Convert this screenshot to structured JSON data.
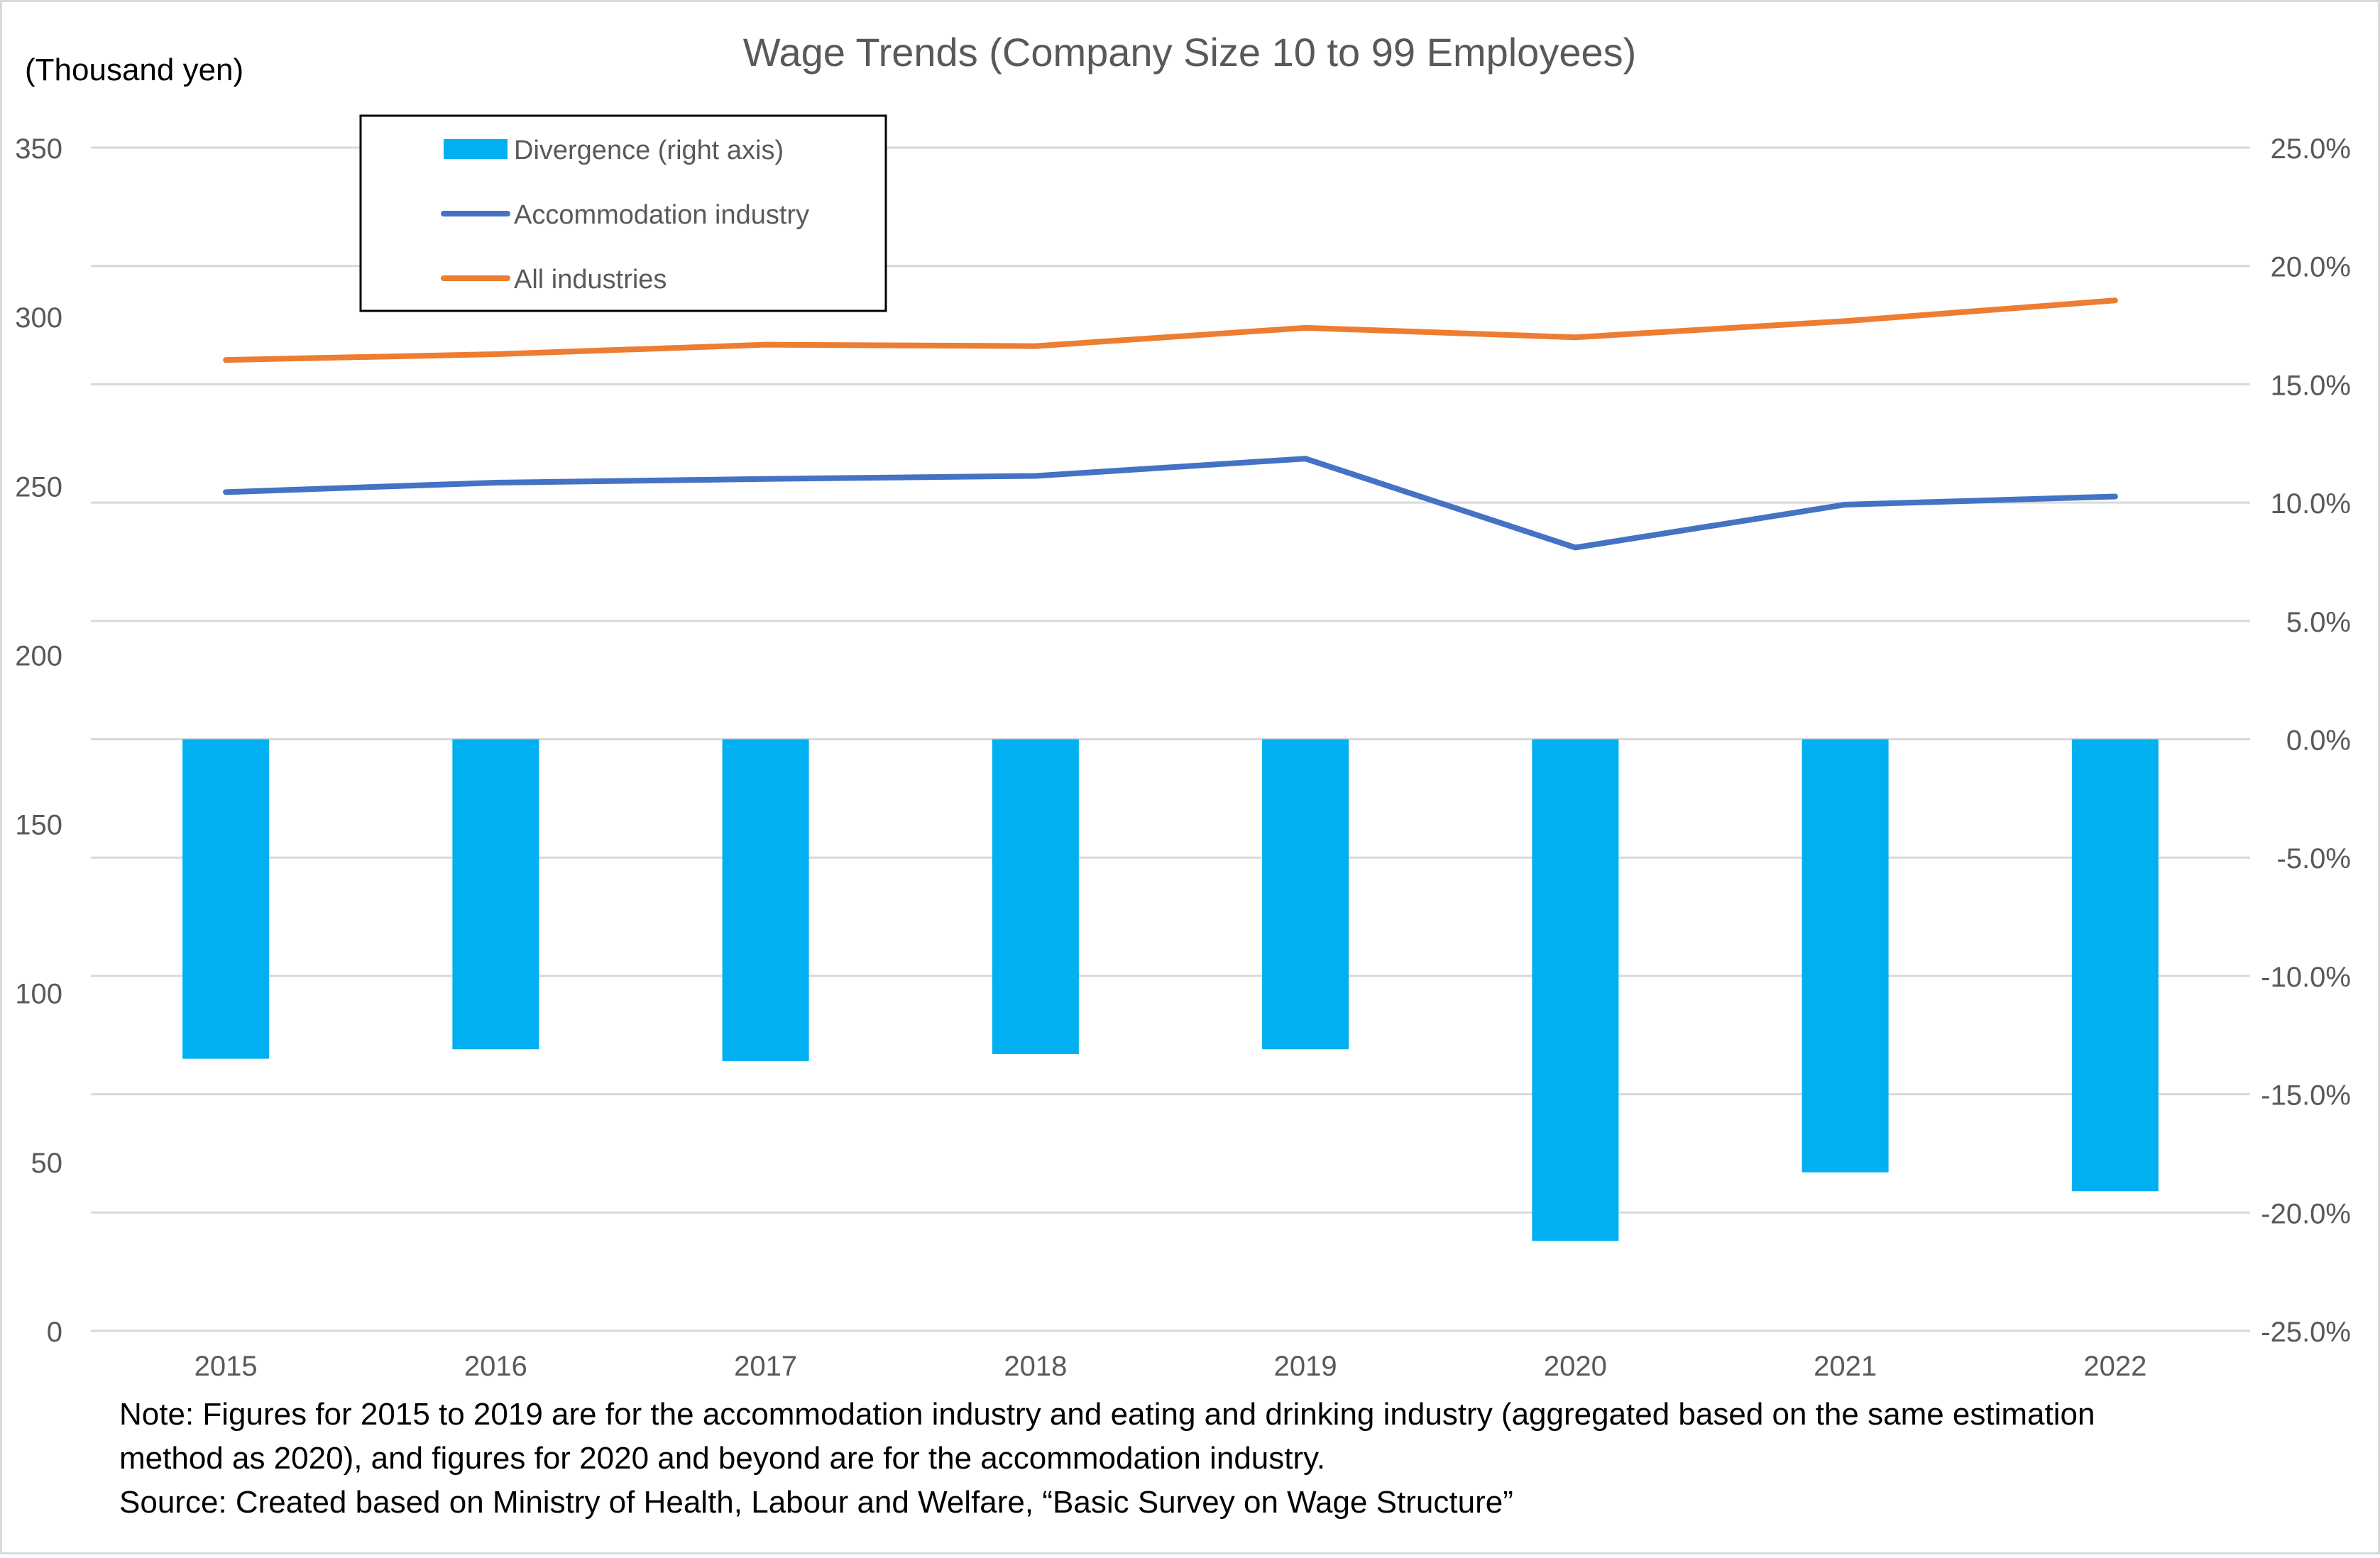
{
  "chart_data": {
    "type": "bar",
    "title": "Wage Trends (Company Size 10 to 99 Employees)",
    "ylabel": "(Thousand yen)",
    "categories": [
      "2015",
      "2016",
      "2017",
      "2018",
      "2019",
      "2020",
      "2021",
      "2022"
    ],
    "left_axis": {
      "ylim": [
        0,
        350
      ],
      "ticks": [
        "0",
        "50",
        "100",
        "150",
        "200",
        "250",
        "300",
        "350"
      ],
      "tick_values": [
        0,
        50,
        100,
        150,
        200,
        250,
        300,
        350
      ]
    },
    "right_axis": {
      "ylim": [
        -25,
        25
      ],
      "ticks": [
        "-25.0%",
        "-20.0%",
        "-15.0%",
        "-10.0%",
        "-5.0%",
        "0.0%",
        "5.0%",
        "10.0%",
        "15.0%",
        "20.0%",
        "25.0%"
      ],
      "tick_values": [
        -25,
        -20,
        -15,
        -10,
        -5,
        0,
        5,
        10,
        15,
        20,
        25
      ]
    },
    "series": [
      {
        "name": "Divergence (right axis)",
        "kind": "bar",
        "axis": "right",
        "color": "#00B0F0",
        "values": [
          -13.5,
          -13.1,
          -13.6,
          -13.3,
          -13.1,
          -21.2,
          -18.3,
          -19.1
        ]
      },
      {
        "name": "Accommodation industry",
        "kind": "line",
        "axis": "left",
        "color": "#4472C4",
        "values": [
          248.1,
          250.9,
          252.0,
          252.9,
          258.0,
          231.7,
          244.4,
          246.8
        ]
      },
      {
        "name": "All industries",
        "kind": "line",
        "axis": "left",
        "color": "#ED7D31",
        "values": [
          287.2,
          288.9,
          291.7,
          291.3,
          296.7,
          293.9,
          298.7,
          304.8
        ]
      }
    ],
    "grid": true,
    "legend_position": "top-left"
  },
  "note": {
    "line1": "Note: Figures for 2015 to 2019 are for the accommodation industry and eating and drinking industry (aggregated based on the same estimation",
    "line2": "method as 2020), and figures for 2020 and beyond are for the accommodation industry.",
    "line3": "Source: Created based on Ministry of Health, Labour and Welfare, “Basic Survey on Wage Structure”"
  }
}
